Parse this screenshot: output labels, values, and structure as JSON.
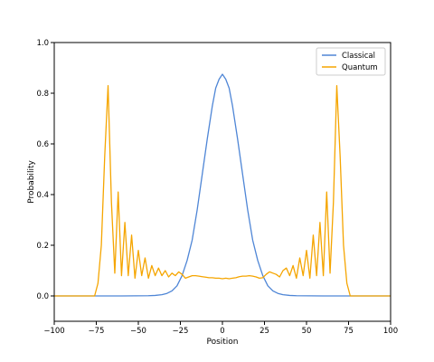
{
  "chart_data": {
    "type": "line",
    "title": "",
    "xlabel": "Position",
    "ylabel": "Probability",
    "xlim": [
      -100,
      100
    ],
    "ylim": [
      -0.1,
      1.0
    ],
    "xticks": [
      -100,
      -75,
      -50,
      -25,
      0,
      25,
      50,
      75,
      100
    ],
    "xtick_labels": [
      "−100",
      "−75",
      "−50",
      "−25",
      "0",
      "25",
      "50",
      "75",
      "100"
    ],
    "yticks": [
      0.0,
      0.2,
      0.4,
      0.6,
      0.8,
      1.0
    ],
    "ytick_labels": [
      "0.0",
      "0.2",
      "0.4",
      "0.6",
      "0.8",
      "1.0"
    ],
    "grid": false,
    "legend_position": "top-right",
    "series": [
      {
        "name": "Classical",
        "color": "#4f86d6",
        "x": [
          -100,
          -60,
          -44,
          -40,
          -36,
          -33,
          -30,
          -27,
          -24,
          -21,
          -18,
          -15,
          -12,
          -9,
          -6,
          -4,
          -2,
          0,
          2,
          4,
          6,
          9,
          12,
          15,
          18,
          21,
          24,
          27,
          30,
          33,
          36,
          40,
          44,
          60,
          100
        ],
        "values": [
          0.0,
          0.0,
          0.001,
          0.002,
          0.005,
          0.01,
          0.02,
          0.04,
          0.08,
          0.14,
          0.22,
          0.34,
          0.48,
          0.62,
          0.75,
          0.82,
          0.855,
          0.875,
          0.855,
          0.82,
          0.75,
          0.62,
          0.48,
          0.34,
          0.22,
          0.14,
          0.08,
          0.04,
          0.02,
          0.01,
          0.005,
          0.002,
          0.001,
          0.0,
          0.0
        ]
      },
      {
        "name": "Quantum",
        "color": "#f5a500",
        "x": [
          -100,
          -76,
          -74,
          -72,
          -70,
          -68,
          -66,
          -64,
          -62,
          -60,
          -58,
          -56,
          -54,
          -52,
          -50,
          -48,
          -46,
          -44,
          -42,
          -40,
          -38,
          -36,
          -34,
          -32,
          -30,
          -28,
          -26,
          -24,
          -22,
          -20,
          -18,
          -16,
          -14,
          -12,
          -10,
          -8,
          -6,
          -4,
          -2,
          0,
          2,
          4,
          6,
          8,
          10,
          12,
          14,
          16,
          18,
          20,
          22,
          24,
          26,
          28,
          30,
          32,
          34,
          36,
          38,
          40,
          42,
          44,
          46,
          48,
          50,
          52,
          54,
          56,
          58,
          60,
          62,
          64,
          66,
          68,
          70,
          72,
          74,
          76,
          100
        ],
        "values": [
          0.0,
          0.0,
          0.05,
          0.2,
          0.55,
          0.83,
          0.37,
          0.09,
          0.41,
          0.08,
          0.29,
          0.08,
          0.24,
          0.07,
          0.18,
          0.08,
          0.15,
          0.07,
          0.12,
          0.08,
          0.11,
          0.08,
          0.1,
          0.075,
          0.09,
          0.08,
          0.095,
          0.085,
          0.07,
          0.075,
          0.08,
          0.08,
          0.078,
          0.076,
          0.074,
          0.072,
          0.072,
          0.07,
          0.07,
          0.068,
          0.07,
          0.068,
          0.07,
          0.072,
          0.076,
          0.078,
          0.078,
          0.08,
          0.078,
          0.075,
          0.07,
          0.072,
          0.085,
          0.095,
          0.09,
          0.085,
          0.075,
          0.1,
          0.11,
          0.08,
          0.12,
          0.07,
          0.15,
          0.08,
          0.18,
          0.07,
          0.24,
          0.08,
          0.29,
          0.08,
          0.41,
          0.09,
          0.37,
          0.83,
          0.55,
          0.2,
          0.05,
          0.0,
          0.0
        ]
      }
    ]
  }
}
